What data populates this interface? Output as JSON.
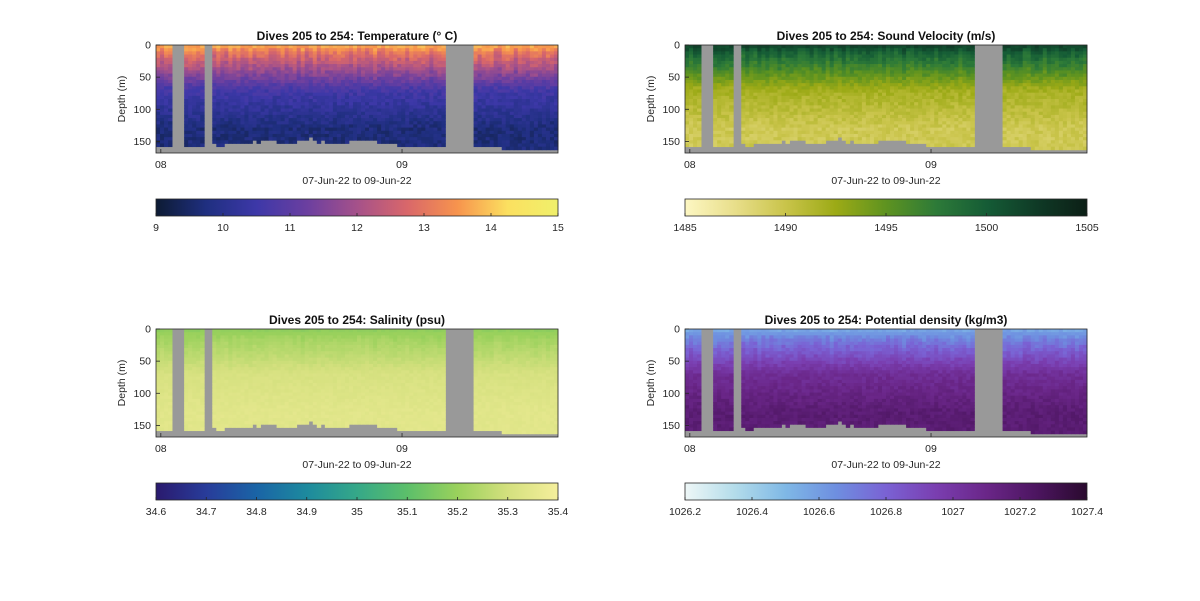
{
  "colors": {
    "nodata": "#999999",
    "axis": "#262626"
  },
  "chart_data": [
    {
      "type": "heatmap",
      "title": "Dives 205 to 254: Temperature",
      "title_unit": "(° C)",
      "xlabel": "07-Jun-22 to 09-Jun-22",
      "ylabel": "Depth (m)",
      "x_ticks": [
        "08",
        "09"
      ],
      "y_ticks": [
        0,
        50,
        100,
        150
      ],
      "ylim": [
        0,
        168
      ],
      "colorbar": {
        "ticks": [
          "9",
          "10",
          "11",
          "12",
          "13",
          "14",
          "15"
        ],
        "range": [
          9,
          15
        ],
        "colormap": [
          "#0d1b33",
          "#1f2f80",
          "#3d38a8",
          "#6b3fa0",
          "#a5518a",
          "#d9676a",
          "#f7944d",
          "#fbe060",
          "#f0f06b"
        ]
      },
      "profile": {
        "surface": 13.8,
        "mid": 10.6,
        "deep": 9.7
      }
    },
    {
      "type": "heatmap",
      "title": "Dives 205 to 254: Sound Velocity (m/s)",
      "xlabel": "07-Jun-22 to 09-Jun-22",
      "ylabel": "Depth (m)",
      "x_ticks": [
        "08",
        "09"
      ],
      "y_ticks": [
        0,
        50,
        100,
        150
      ],
      "ylim": [
        0,
        168
      ],
      "colorbar": {
        "ticks": [
          "1485",
          "1490",
          "1495",
          "1500",
          "1505"
        ],
        "range": [
          1485,
          1505
        ],
        "colormap": [
          "#fdf7c3",
          "#e8de8a",
          "#c9c44a",
          "#9caa16",
          "#5e9320",
          "#2d7a38",
          "#155c36",
          "#0f3a26",
          "#0c1f16"
        ]
      },
      "profile": {
        "surface": 1502.0,
        "mid": 1492.0,
        "deep": 1489.6
      }
    },
    {
      "type": "heatmap",
      "title": "Dives 205 to 254: Salinity (psu)",
      "xlabel": "07-Jun-22 to 09-Jun-22",
      "ylabel": "Depth (m)",
      "x_ticks": [
        "08",
        "09"
      ],
      "y_ticks": [
        0,
        50,
        100,
        150
      ],
      "ylim": [
        0,
        168
      ],
      "colorbar": {
        "ticks": [
          "34.6",
          "34.7",
          "34.8",
          "34.9",
          "35",
          "35.1",
          "35.2",
          "35.3",
          "35.4"
        ],
        "range": [
          34.6,
          35.4
        ],
        "colormap": [
          "#2a1a6e",
          "#283c9a",
          "#1a64a6",
          "#1d8a9e",
          "#35a888",
          "#5cbf6a",
          "#9ad15c",
          "#d4e07e",
          "#f5ef9c"
        ]
      },
      "profile": {
        "surface": 35.18,
        "mid": 35.31,
        "deep": 35.34
      }
    },
    {
      "type": "heatmap",
      "title": "Dives 205 to 254: Potential density",
      "title_unit": "(kg/m3)",
      "xlabel": "07-Jun-22 to 09-Jun-22",
      "ylabel": "Depth (m)",
      "x_ticks": [
        "08",
        "09"
      ],
      "y_ticks": [
        0,
        50,
        100,
        150
      ],
      "ylim": [
        0,
        168
      ],
      "colorbar": {
        "ticks": [
          "1026.2",
          "1026.4",
          "1026.6",
          "1026.8",
          "1027",
          "1027.2",
          "1027.4"
        ],
        "range": [
          1026.2,
          1027.4
        ],
        "colormap": [
          "#eef7f7",
          "#b3dcea",
          "#7fb8e6",
          "#6e8fe0",
          "#7a62d4",
          "#7a3eb0",
          "#6a2688",
          "#4c1560",
          "#2a0a2e"
        ]
      },
      "profile": {
        "surface": 1026.55,
        "mid": 1027.05,
        "deep": 1027.18
      }
    }
  ]
}
